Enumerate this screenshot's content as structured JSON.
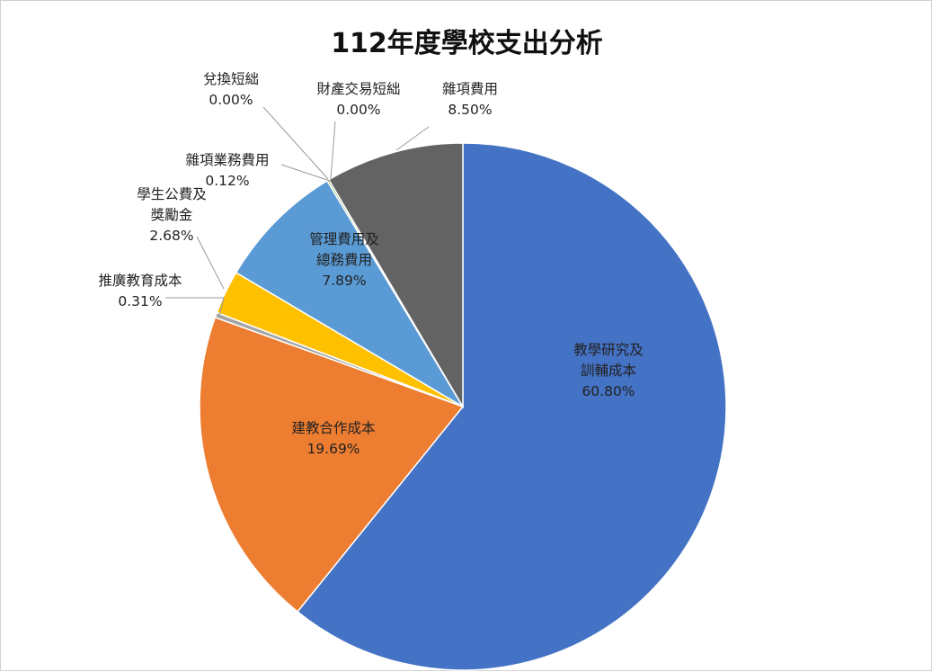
{
  "chart_data": {
    "type": "pie",
    "title": "112年度學校支出分析",
    "start_angle_deg": 0,
    "direction": "clockwise",
    "slices": [
      {
        "name_lines": [
          "教學研究及",
          "訓輔成本"
        ],
        "value": 60.8,
        "label": "60.80%",
        "color": "#4472C4"
      },
      {
        "name_lines": [
          "建教合作成本"
        ],
        "value": 19.69,
        "label": "19.69%",
        "color": "#ED7D31"
      },
      {
        "name_lines": [
          "推廣教育成本"
        ],
        "value": 0.31,
        "label": "0.31%",
        "color": "#A5A5A5"
      },
      {
        "name_lines": [
          "學生公費及",
          "獎勵金"
        ],
        "value": 2.68,
        "label": "2.68%",
        "color": "#FFC000"
      },
      {
        "name_lines": [
          "管理費用及",
          "總務費用"
        ],
        "value": 7.89,
        "label": "7.89%",
        "color": "#5B9BD5"
      },
      {
        "name_lines": [
          "雜項業務費用"
        ],
        "value": 0.12,
        "label": "0.12%",
        "color": "#70AD47"
      },
      {
        "name_lines": [
          "財產交易短絀"
        ],
        "value": 0.0,
        "label": "0.00%",
        "color": "#264478"
      },
      {
        "name_lines": [
          "兌換短絀"
        ],
        "value": 0.0,
        "label": "0.00%",
        "color": "#9E480E"
      },
      {
        "name_lines": [
          "雜項費用"
        ],
        "value": 8.5,
        "label": "8.50%",
        "color": "#636363"
      }
    ]
  }
}
